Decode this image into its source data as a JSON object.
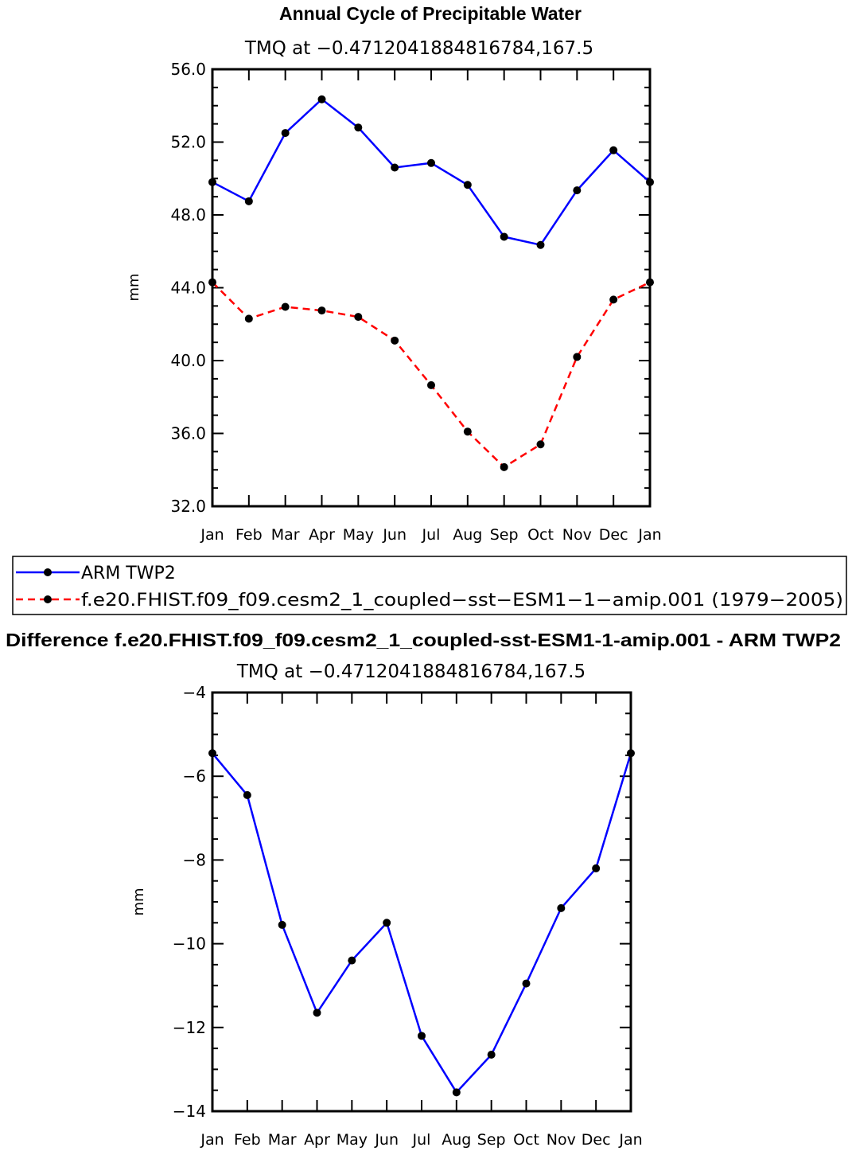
{
  "chart_data": [
    {
      "type": "line",
      "title": "Annual Cycle of Precipitable Water",
      "subtitle": "TMQ at −0.4712041884816784,167.5",
      "ylabel": "mm",
      "ylim": [
        32.0,
        56.0
      ],
      "yticks": [
        "32.0",
        "36.0",
        "40.0",
        "44.0",
        "48.0",
        "52.0",
        "56.0"
      ],
      "yminor_step": 1,
      "categories": [
        "Jan",
        "Feb",
        "Mar",
        "Apr",
        "May",
        "Jun",
        "Jul",
        "Aug",
        "Sep",
        "Oct",
        "Nov",
        "Dec",
        "Jan"
      ],
      "series": [
        {
          "name": "ARM TWP2",
          "color": "#0000ff",
          "dash": "solid",
          "values": [
            49.8,
            48.75,
            52.5,
            54.35,
            52.8,
            50.6,
            50.85,
            49.65,
            46.8,
            46.35,
            49.35,
            51.55,
            49.8
          ]
        },
        {
          "name": "f.e20.FHIST.f09_f09.cesm2_1_coupled−sst−ESM1−1−amip.001 (1979−2005)",
          "color": "#ff0000",
          "dash": "dashed",
          "values": [
            44.3,
            42.3,
            42.95,
            42.75,
            42.4,
            41.1,
            38.65,
            36.1,
            34.15,
            35.4,
            40.2,
            43.35,
            44.3
          ]
        }
      ]
    },
    {
      "type": "line",
      "title": "Difference f.e20.FHIST.f09_f09.cesm2_1_coupled-sst-ESM1-1-amip.001 - ARM TWP2",
      "subtitle": "TMQ at −0.4712041884816784,167.5",
      "ylabel": "mm",
      "ylim": [
        -14,
        -4
      ],
      "yticks": [
        "−14",
        "−12",
        "−10",
        "−8",
        "−6",
        "−4"
      ],
      "yminor_step": 0.5,
      "categories": [
        "Jan",
        "Feb",
        "Mar",
        "Apr",
        "May",
        "Jun",
        "Jul",
        "Aug",
        "Sep",
        "Oct",
        "Nov",
        "Dec",
        "Jan"
      ],
      "series": [
        {
          "name": "Difference",
          "color": "#0000ff",
          "dash": "solid",
          "values": [
            -5.45,
            -6.45,
            -9.55,
            -11.65,
            -10.4,
            -9.5,
            -12.2,
            -13.55,
            -12.65,
            -10.95,
            -9.15,
            -8.2,
            -5.45
          ]
        }
      ]
    }
  ],
  "legend": {
    "entries": [
      {
        "label": "ARM TWP2",
        "color": "#0000ff",
        "dash": "solid"
      },
      {
        "label": "f.e20.FHIST.f09_f09.cesm2_1_coupled−sst−ESM1−1−amip.001 (1979−2005)",
        "color": "#ff0000",
        "dash": "dashed"
      }
    ]
  }
}
